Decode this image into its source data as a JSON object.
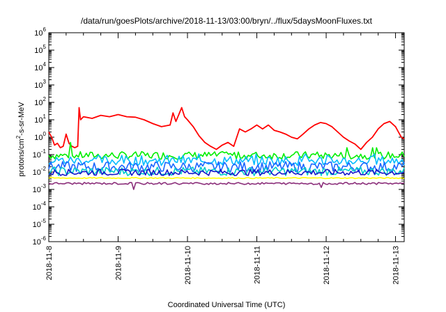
{
  "chart_data": {
    "type": "line",
    "title": "/data/run/goesPlots/archive/2018-11-13/03:00/bryn/../flux/5daysMoonFluxes.txt",
    "xlabel": "Coordinated Universal Time (UTC)",
    "ylabel": {
      "prefix": "protons/cm",
      "sup": "2",
      "suffix": "-s-sr-MeV"
    },
    "yscale": "log",
    "ylim": [
      1e-06,
      1000000.0
    ],
    "xlim": [
      "2018-11-08T00:00",
      "2018-11-13T03:00"
    ],
    "grid": false,
    "y_ticks": [
      {
        "value": 1e-06,
        "base": "10",
        "exp": "-6"
      },
      {
        "value": 1e-05,
        "base": "10",
        "exp": "-5"
      },
      {
        "value": 0.0001,
        "base": "10",
        "exp": "-4"
      },
      {
        "value": 0.001,
        "base": "10",
        "exp": "-3"
      },
      {
        "value": 0.01,
        "base": "10",
        "exp": "-2"
      },
      {
        "value": 0.1,
        "base": "10",
        "exp": "-1"
      },
      {
        "value": 1.0,
        "base": "10",
        "exp": "0"
      },
      {
        "value": 10.0,
        "base": "10",
        "exp": "1"
      },
      {
        "value": 100.0,
        "base": "10",
        "exp": "2"
      },
      {
        "value": 1000.0,
        "base": "10",
        "exp": "3"
      },
      {
        "value": 10000.0,
        "base": "10",
        "exp": "4"
      },
      {
        "value": 100000.0,
        "base": "10",
        "exp": "5"
      },
      {
        "value": 1000000.0,
        "base": "10",
        "exp": "6"
      }
    ],
    "x_ticks": [
      "2018-11-8",
      "2018-11-9",
      "2018-11-10",
      "2018-11-11",
      "2018-11-12",
      "2018-11-13"
    ],
    "series": [
      {
        "color": "#ff0000",
        "points": [
          [
            "2018-11-08T00:00",
            2
          ],
          [
            "2018-11-08T01:00",
            1
          ],
          [
            "2018-11-08T02:00",
            0.35
          ],
          [
            "2018-11-08T03:00",
            0.45
          ],
          [
            "2018-11-08T04:00",
            0.25
          ],
          [
            "2018-11-08T05:00",
            0.3
          ],
          [
            "2018-11-08T06:00",
            1.5
          ],
          [
            "2018-11-08T07:00",
            0.45
          ],
          [
            "2018-11-08T08:00",
            0.3
          ],
          [
            "2018-11-08T09:00",
            0.25
          ],
          [
            "2018-11-08T10:00",
            0.3
          ],
          [
            "2018-11-08T10:30",
            50
          ],
          [
            "2018-11-08T11:00",
            10
          ],
          [
            "2018-11-08T12:00",
            15
          ],
          [
            "2018-11-08T15:00",
            12
          ],
          [
            "2018-11-08T18:00",
            18
          ],
          [
            "2018-11-08T21:00",
            15
          ],
          [
            "2018-11-09T00:00",
            20
          ],
          [
            "2018-11-09T03:00",
            15
          ],
          [
            "2018-11-09T06:00",
            14
          ],
          [
            "2018-11-09T09:00",
            10
          ],
          [
            "2018-11-09T12:00",
            6
          ],
          [
            "2018-11-09T15:00",
            4
          ],
          [
            "2018-11-09T18:00",
            5
          ],
          [
            "2018-11-09T19:00",
            25
          ],
          [
            "2018-11-09T20:00",
            8
          ],
          [
            "2018-11-09T21:00",
            20
          ],
          [
            "2018-11-09T22:00",
            50
          ],
          [
            "2018-11-09T23:00",
            15
          ],
          [
            "2018-11-10T00:00",
            10
          ],
          [
            "2018-11-10T02:00",
            4
          ],
          [
            "2018-11-10T04:00",
            1.2
          ],
          [
            "2018-11-10T06:00",
            0.5
          ],
          [
            "2018-11-10T08:00",
            0.3
          ],
          [
            "2018-11-10T10:00",
            0.2
          ],
          [
            "2018-11-10T12:00",
            0.35
          ],
          [
            "2018-11-10T14:00",
            0.5
          ],
          [
            "2018-11-10T16:00",
            0.3
          ],
          [
            "2018-11-10T18:00",
            3
          ],
          [
            "2018-11-10T20:00",
            2
          ],
          [
            "2018-11-10T22:00",
            3
          ],
          [
            "2018-11-11T00:00",
            5
          ],
          [
            "2018-11-11T02:00",
            3
          ],
          [
            "2018-11-11T04:00",
            5
          ],
          [
            "2018-11-11T06:00",
            2.5
          ],
          [
            "2018-11-11T08:00",
            2
          ],
          [
            "2018-11-11T10:00",
            1.5
          ],
          [
            "2018-11-11T12:00",
            1
          ],
          [
            "2018-11-11T14:00",
            0.8
          ],
          [
            "2018-11-11T16:00",
            1.5
          ],
          [
            "2018-11-11T18:00",
            3
          ],
          [
            "2018-11-11T20:00",
            5
          ],
          [
            "2018-11-11T22:00",
            7
          ],
          [
            "2018-11-12T00:00",
            6
          ],
          [
            "2018-11-12T02:00",
            4
          ],
          [
            "2018-11-12T04:00",
            2
          ],
          [
            "2018-11-12T06:00",
            1
          ],
          [
            "2018-11-12T08:00",
            0.6
          ],
          [
            "2018-11-12T10:00",
            0.4
          ],
          [
            "2018-11-12T12:00",
            0.2
          ],
          [
            "2018-11-12T14:00",
            0.5
          ],
          [
            "2018-11-12T16:00",
            1
          ],
          [
            "2018-11-12T18:00",
            3
          ],
          [
            "2018-11-12T20:00",
            6
          ],
          [
            "2018-11-12T22:00",
            8
          ],
          [
            "2018-11-13T00:00",
            4
          ],
          [
            "2018-11-13T01:00",
            2
          ],
          [
            "2018-11-13T02:00",
            1
          ],
          [
            "2018-11-13T03:00",
            0.8
          ]
        ]
      },
      {
        "color": "#00ee00",
        "level": 0.09,
        "jitter": 0.22,
        "spikes": [
          0.5,
          0.14,
          0.25
        ]
      },
      {
        "color": "#00bbff",
        "level": 0.045,
        "jitter": 0.28,
        "spikes": [
          0.11,
          0.09
        ]
      },
      {
        "color": "#1a66ff",
        "level": 0.02,
        "jitter": 0.3,
        "spikes": []
      },
      {
        "color": "#00cccc",
        "level": 0.011,
        "jitter": 0.25,
        "spikes": []
      },
      {
        "color": "#1515c8",
        "level": 0.0095,
        "jitter": 0.18,
        "spikes": []
      },
      {
        "color": "#ffff00",
        "level": 0.0045,
        "jitter": 0.03,
        "spikes": []
      },
      {
        "color": "#8b2e7a",
        "level": 0.0022,
        "jitter": 0.06,
        "dips": [
          0.0013,
          0.001,
          0.0012
        ]
      }
    ]
  }
}
